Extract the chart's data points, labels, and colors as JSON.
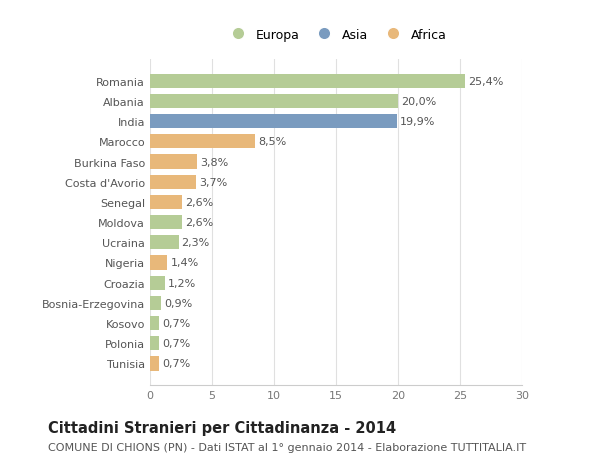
{
  "categories": [
    "Romania",
    "Albania",
    "India",
    "Marocco",
    "Burkina Faso",
    "Costa d'Avorio",
    "Senegal",
    "Moldova",
    "Ucraina",
    "Nigeria",
    "Croazia",
    "Bosnia-Erzegovina",
    "Kosovo",
    "Polonia",
    "Tunisia"
  ],
  "values": [
    25.4,
    20.0,
    19.9,
    8.5,
    3.8,
    3.7,
    2.6,
    2.6,
    2.3,
    1.4,
    1.2,
    0.9,
    0.7,
    0.7,
    0.7
  ],
  "labels": [
    "25,4%",
    "20,0%",
    "19,9%",
    "8,5%",
    "3,8%",
    "3,7%",
    "2,6%",
    "2,6%",
    "2,3%",
    "1,4%",
    "1,2%",
    "0,9%",
    "0,7%",
    "0,7%",
    "0,7%"
  ],
  "continents": [
    "Europa",
    "Europa",
    "Asia",
    "Africa",
    "Africa",
    "Africa",
    "Africa",
    "Europa",
    "Europa",
    "Africa",
    "Europa",
    "Europa",
    "Europa",
    "Europa",
    "Africa"
  ],
  "colors": {
    "Europa": "#b5cc96",
    "Asia": "#7a9bbf",
    "Africa": "#e8b87a"
  },
  "title": "Cittadini Stranieri per Cittadinanza - 2014",
  "subtitle": "COMUNE DI CHIONS (PN) - Dati ISTAT al 1° gennaio 2014 - Elaborazione TUTTITALIA.IT",
  "xlim": [
    0,
    30
  ],
  "xticks": [
    0,
    5,
    10,
    15,
    20,
    25,
    30
  ],
  "background_color": "#ffffff",
  "grid_color": "#e0e0e0",
  "bar_height": 0.7,
  "title_fontsize": 10.5,
  "subtitle_fontsize": 8,
  "tick_fontsize": 8,
  "label_fontsize": 8
}
